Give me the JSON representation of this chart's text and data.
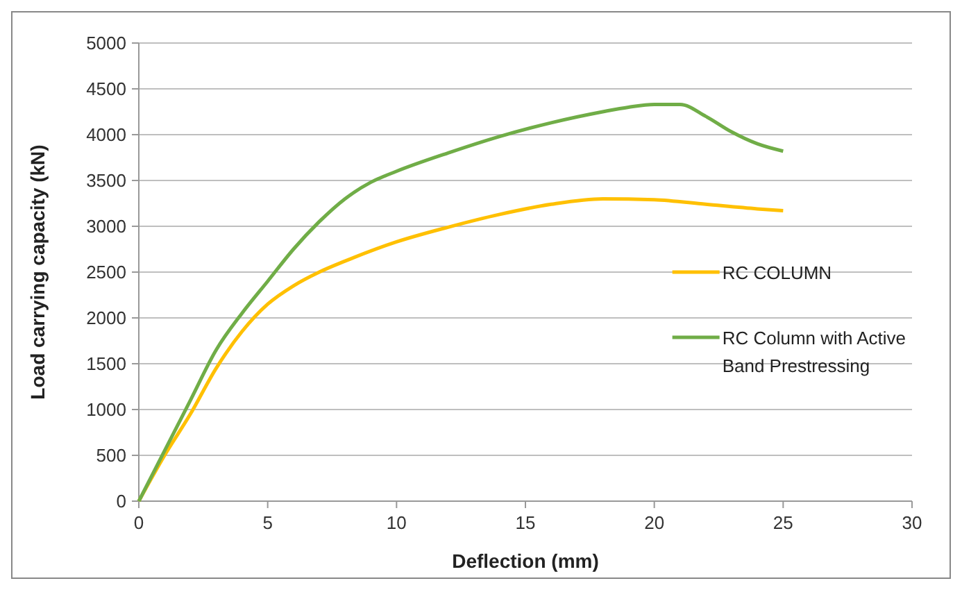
{
  "chart_data": {
    "type": "line",
    "xlabel": "Deflection (mm)",
    "ylabel": "Load carrying capacity (kN)",
    "xlim": [
      0,
      30
    ],
    "xticks": [
      0,
      5,
      10,
      15,
      20,
      25,
      30
    ],
    "ylim": [
      0,
      5000
    ],
    "yticks": [
      0,
      500,
      1000,
      1500,
      2000,
      2500,
      3000,
      3500,
      4000,
      4500,
      5000
    ],
    "grid": "y",
    "legend": "right",
    "marker": "none",
    "line_style": "solid",
    "series": [
      {
        "name": "RC COLUMN",
        "color": "#ffc000",
        "x": [
          0,
          1,
          2,
          3,
          4,
          5,
          6,
          7,
          8,
          10,
          12,
          14,
          16,
          18,
          20,
          22,
          24,
          25
        ],
        "values": [
          0,
          500,
          950,
          1450,
          1850,
          2150,
          2350,
          2500,
          2620,
          2830,
          2990,
          3130,
          3240,
          3300,
          3290,
          3240,
          3190,
          3170
        ]
      },
      {
        "name": "RC Column with Active Band Prestressing",
        "color": "#70ad47",
        "x": [
          0,
          1,
          2,
          3,
          4,
          5,
          6,
          7,
          8,
          9,
          10,
          12,
          14,
          16,
          18,
          19,
          20,
          21,
          22,
          23,
          24,
          25
        ],
        "values": [
          0,
          550,
          1100,
          1650,
          2050,
          2400,
          2750,
          3050,
          3300,
          3480,
          3600,
          3800,
          3980,
          4130,
          4250,
          4300,
          4330,
          4330,
          4200,
          4030,
          3900,
          3820
        ]
      }
    ]
  }
}
